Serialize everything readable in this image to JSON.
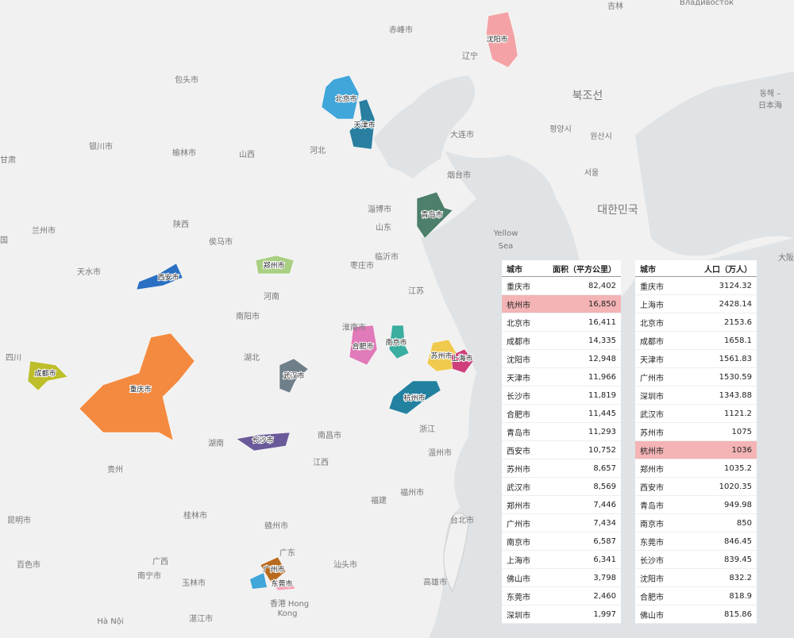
{
  "map": {
    "regions": [
      {
        "label": "沈阳市",
        "color": "#f4a2a5"
      },
      {
        "label": "北京市",
        "color": "#41a6d9"
      },
      {
        "label": "天津市",
        "color": "#2a7fa0"
      },
      {
        "label": "青岛市",
        "color": "#4d7f6a"
      },
      {
        "label": "郑州市",
        "color": "#a9cf83"
      },
      {
        "label": "西安市",
        "color": "#2a6fc2"
      },
      {
        "label": "成都市",
        "color": "#bdbe2a"
      },
      {
        "label": "重庆市",
        "color": "#f48a3f"
      },
      {
        "label": "武汉市",
        "color": "#6f7f8a"
      },
      {
        "label": "合肥市",
        "color": "#e07ab8"
      },
      {
        "label": "南京市",
        "color": "#3aaea0"
      },
      {
        "label": "苏州市",
        "color": "#f0c94f"
      },
      {
        "label": "上海市",
        "color": "#cf3f7c"
      },
      {
        "label": "杭州市",
        "color": "#2381a0"
      },
      {
        "label": "长沙市",
        "color": "#6a5a9a"
      },
      {
        "label": "广州市",
        "color": "#b86a1e"
      },
      {
        "label": "东莞市",
        "color": "#f5a0b5"
      }
    ],
    "places": [
      "吉林",
      "Владивосток",
      "赤峰市",
      "辽宁",
      "包头市",
      "북조선",
      "동해 –",
      "日本海",
      "평양시",
      "원산시",
      "大连市",
      "银川市",
      "榆林市",
      "山西",
      "河北",
      "甘肃",
      "烟台市",
      "서울",
      "대한민국",
      "淄博市",
      "山东",
      "兰州市",
      "陕西",
      "侯马市",
      "Yellow",
      "Sea",
      "临沂市",
      "枣庄市",
      "天水市",
      "河南",
      "江苏",
      "南阳市",
      "淮南市",
      "四川",
      "湖北",
      "浙江",
      "南昌市",
      "湖南",
      "温州市",
      "江西",
      "贵州",
      "福建",
      "福州市",
      "桂林市",
      "赣州市",
      "昆明市",
      "台北市",
      "广东",
      "广西",
      "汕头市",
      "百色市",
      "南宁市",
      "玉林市",
      "高雄市",
      "湛江市",
      "香港",
      "Hong",
      "Kong",
      "Hà Nội",
      "大阪",
      "国"
    ]
  },
  "table_area": {
    "header": [
      "城市",
      "面积（平方公里）"
    ],
    "highlight_row": 1,
    "rows": [
      [
        "重庆市",
        "82,402"
      ],
      [
        "杭州市",
        "16,850"
      ],
      [
        "北京市",
        "16,411"
      ],
      [
        "成都市",
        "14,335"
      ],
      [
        "沈阳市",
        "12,948"
      ],
      [
        "天津市",
        "11,966"
      ],
      [
        "长沙市",
        "11,819"
      ],
      [
        "合肥市",
        "11,445"
      ],
      [
        "青岛市",
        "11,293"
      ],
      [
        "西安市",
        "10,752"
      ],
      [
        "苏州市",
        "8,657"
      ],
      [
        "武汉市",
        "8,569"
      ],
      [
        "郑州市",
        "7,446"
      ],
      [
        "广州市",
        "7,434"
      ],
      [
        "南京市",
        "6,587"
      ],
      [
        "上海市",
        "6,341"
      ],
      [
        "佛山市",
        "3,798"
      ],
      [
        "东莞市",
        "2,460"
      ],
      [
        "深圳市",
        "1,997"
      ]
    ]
  },
  "table_population": {
    "header": [
      "城市",
      "人口（万人）"
    ],
    "highlight_row": 9,
    "rows": [
      [
        "重庆市",
        "3124.32"
      ],
      [
        "上海市",
        "2428.14"
      ],
      [
        "北京市",
        "2153.6"
      ],
      [
        "成都市",
        "1658.1"
      ],
      [
        "天津市",
        "1561.83"
      ],
      [
        "广州市",
        "1530.59"
      ],
      [
        "深圳市",
        "1343.88"
      ],
      [
        "武汉市",
        "1121.2"
      ],
      [
        "苏州市",
        "1075"
      ],
      [
        "杭州市",
        "1036"
      ],
      [
        "郑州市",
        "1035.2"
      ],
      [
        "西安市",
        "1020.35"
      ],
      [
        "青岛市",
        "949.98"
      ],
      [
        "南京市",
        "850"
      ],
      [
        "东莞市",
        "846.45"
      ],
      [
        "长沙市",
        "839.45"
      ],
      [
        "沈阳市",
        "832.2"
      ],
      [
        "合肥市",
        "818.9"
      ],
      [
        "佛山市",
        "815.86"
      ]
    ]
  }
}
